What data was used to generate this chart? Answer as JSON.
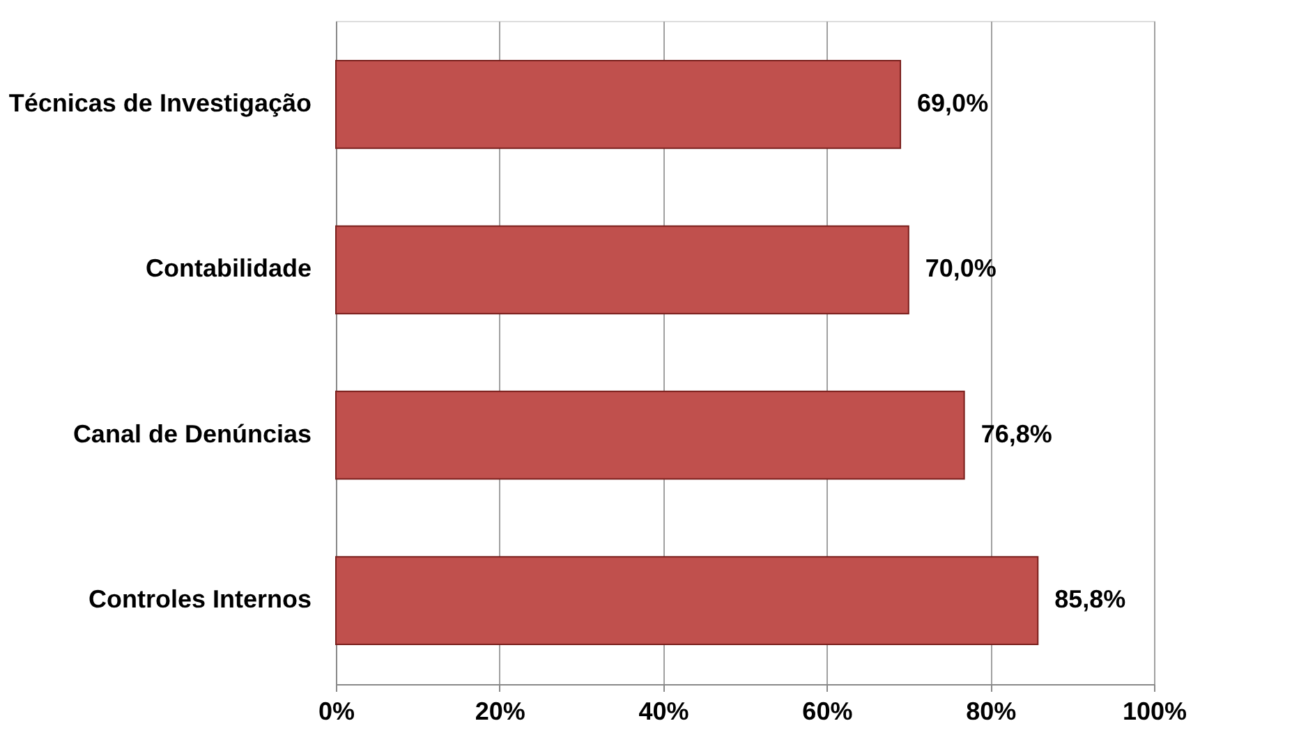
{
  "chart_data": {
    "type": "bar",
    "orientation": "horizontal",
    "categories": [
      "Técnicas de Investigação",
      "Contabilidade",
      "Canal de Denúncias",
      "Controles Internos"
    ],
    "values": [
      69.0,
      70.0,
      76.8,
      85.8
    ],
    "value_labels": [
      "69,0%",
      "70,0%",
      "76,8%",
      "85,8%"
    ],
    "color": "#c0504d",
    "xlim": [
      0,
      100
    ],
    "xticks": [
      {
        "value": 0,
        "label": "0%"
      },
      {
        "value": 20,
        "label": "20%"
      },
      {
        "value": 40,
        "label": "40%"
      },
      {
        "value": 60,
        "label": "60%"
      },
      {
        "value": 80,
        "label": "80%"
      },
      {
        "value": 100,
        "label": "100%"
      }
    ],
    "grid": "x"
  }
}
